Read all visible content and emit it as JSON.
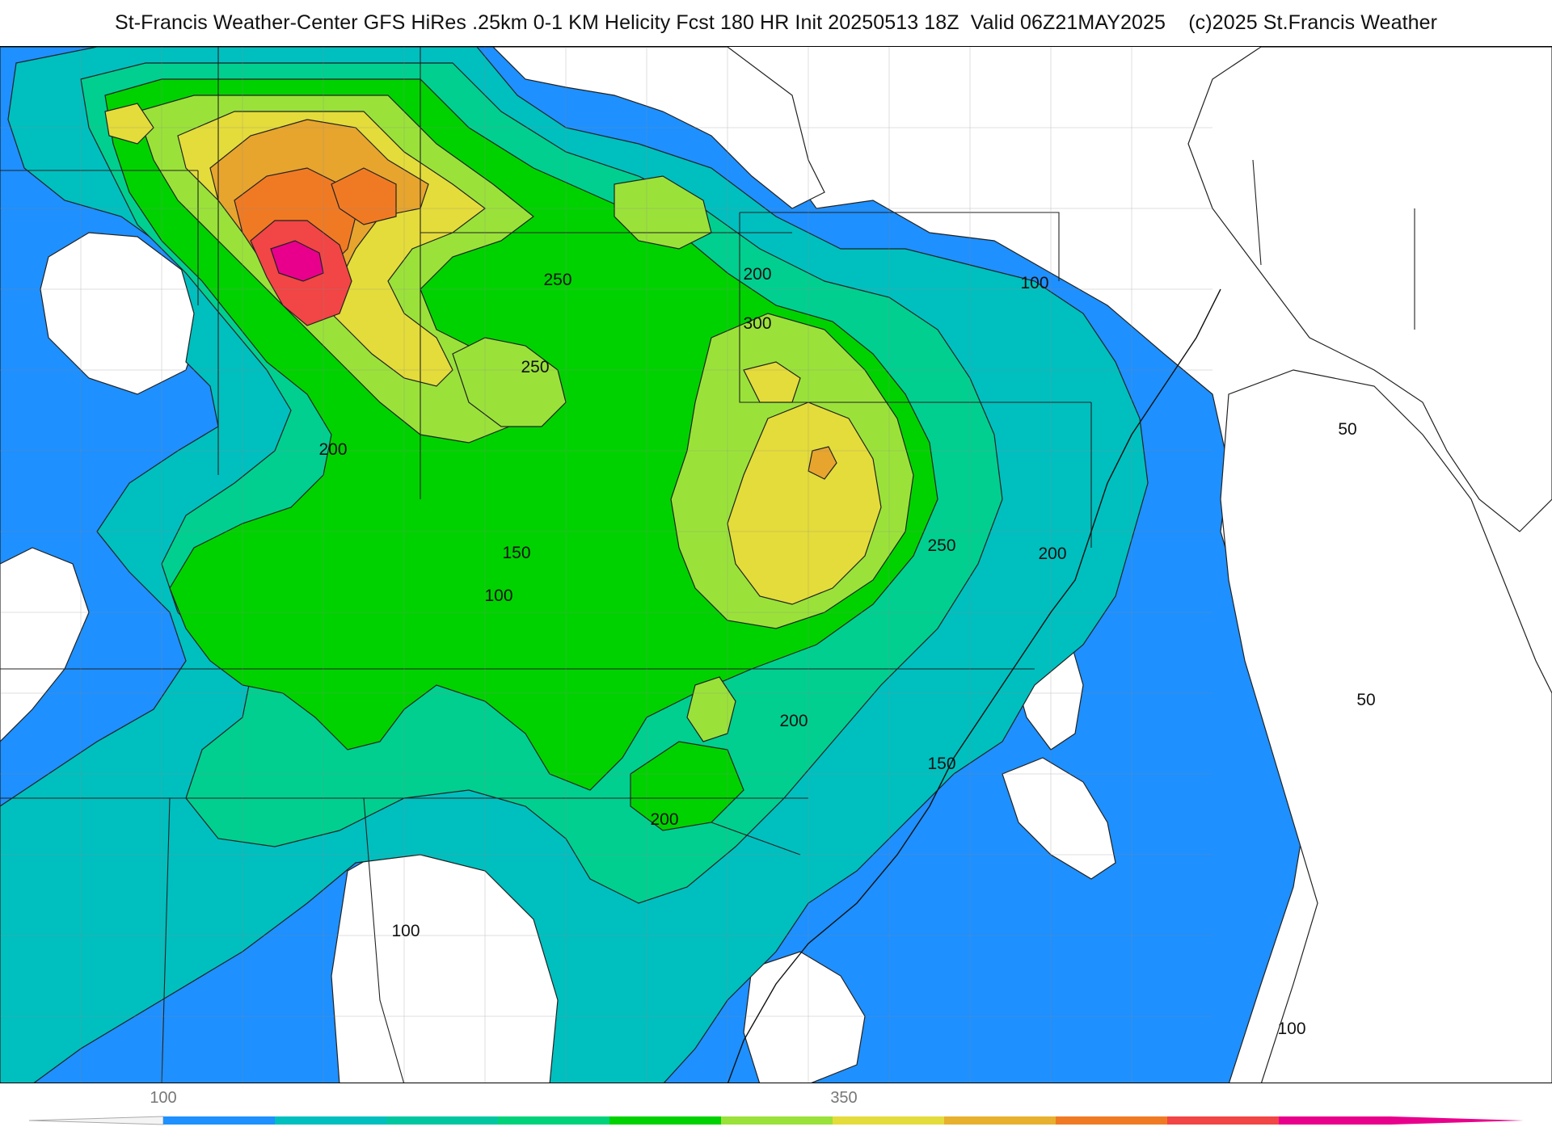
{
  "header": {
    "title": "St-Francis Weather-Center GFS HiRes .25km 0-1 KM Helicity Fcst 180 HR Init 20250513 18Z  Valid 06Z21MAY2025    (c)2025 St.Francis Weather"
  },
  "colors": {
    "white_lt50": "#ffffff",
    "c50": "#1e90ff",
    "c100": "#00bfbf",
    "c150": "#00d68a",
    "c200": "#00d200",
    "c250": "#9ae23a",
    "c300": "#e4dc3a",
    "c350": "#e7a52e",
    "c400": "#f07a24",
    "c450": "#f24545",
    "c500": "#e8008c"
  },
  "contour_labels": [
    {
      "text": "250"
    },
    {
      "text": "250"
    },
    {
      "text": "200"
    },
    {
      "text": "300"
    },
    {
      "text": "100"
    },
    {
      "text": "200"
    },
    {
      "text": "150"
    },
    {
      "text": "100"
    },
    {
      "text": "250"
    },
    {
      "text": "200"
    },
    {
      "text": "50"
    },
    {
      "text": "50"
    },
    {
      "text": "200"
    },
    {
      "text": "150"
    },
    {
      "text": "200"
    },
    {
      "text": "100"
    },
    {
      "text": "100"
    }
  ],
  "legend": {
    "ticks": [
      {
        "label": "100"
      },
      {
        "label": "350"
      }
    ],
    "colors": [
      "#1e90ff",
      "#00bfbf",
      "#00c7a0",
      "#00d27a",
      "#00d200",
      "#9ae23a",
      "#e4dc3a",
      "#e7b02e",
      "#f07a24",
      "#f24545",
      "#e8008c"
    ]
  }
}
